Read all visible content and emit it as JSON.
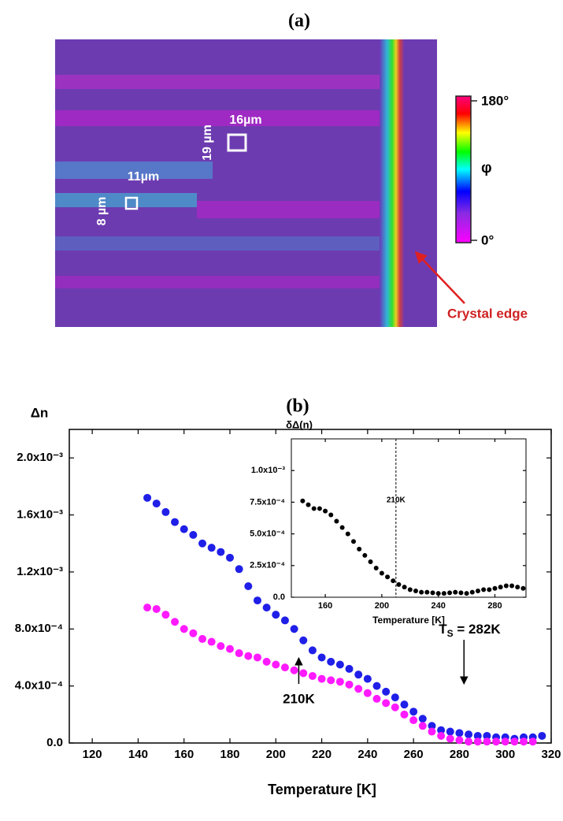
{
  "panel_a": {
    "title": "(a)",
    "labels": [
      "16µm",
      "19 µm",
      "11µm",
      "8 µm"
    ],
    "colorbar": {
      "max_label": "180°",
      "symbol": "φ",
      "min_label": "0°"
    },
    "annotation": "Crystal edge"
  },
  "chart_data": [
    {
      "type": "scatter",
      "title": "(b)",
      "y_label": "Δn",
      "x_label": "Temperature [K]",
      "xlim": [
        110,
        320
      ],
      "xticks": [
        120,
        140,
        160,
        180,
        200,
        220,
        240,
        260,
        280,
        300,
        320
      ],
      "ylim": [
        0,
        0.0022
      ],
      "yticks": [
        {
          "value": 0,
          "label": "0.0"
        },
        {
          "value": 0.0004,
          "label": "4.0x10⁻⁴"
        },
        {
          "value": 0.0008,
          "label": "8.0x10⁻⁴"
        },
        {
          "value": 0.0012,
          "label": "1.2x10⁻³"
        },
        {
          "value": 0.0016,
          "label": "1.6x10⁻³"
        },
        {
          "value": 0.002,
          "label": "2.0x10⁻³"
        }
      ],
      "series": [
        {
          "color": "#1f1fe8",
          "x": [
            144,
            148,
            152,
            156,
            160,
            164,
            168,
            172,
            176,
            180,
            184,
            188,
            192,
            196,
            200,
            204,
            208,
            212,
            216,
            220,
            224,
            228,
            232,
            236,
            240,
            244,
            248,
            252,
            256,
            260,
            264,
            268,
            272,
            276,
            280,
            284,
            288,
            292,
            296,
            300,
            304,
            308,
            312,
            316
          ],
          "values": [
            0.00172,
            0.00168,
            0.00162,
            0.00155,
            0.0015,
            0.00146,
            0.0014,
            0.00137,
            0.00134,
            0.0013,
            0.00122,
            0.0011,
            0.001,
            0.00095,
            0.0009,
            0.00086,
            0.0008,
            0.00072,
            0.00065,
            0.0006,
            0.00057,
            0.00055,
            0.00052,
            0.00048,
            0.00045,
            0.0004,
            0.00036,
            0.00032,
            0.00027,
            0.00022,
            0.00017,
            0.00012,
            9e-05,
            8e-05,
            7e-05,
            6e-05,
            5e-05,
            5e-05,
            4e-05,
            4e-05,
            3e-05,
            4e-05,
            4e-05,
            5e-05
          ]
        },
        {
          "color": "#ff1aff",
          "x": [
            144,
            148,
            152,
            156,
            160,
            164,
            168,
            172,
            176,
            180,
            184,
            188,
            192,
            196,
            200,
            204,
            208,
            212,
            216,
            220,
            224,
            228,
            232,
            236,
            240,
            244,
            248,
            252,
            256,
            260,
            264,
            268,
            272,
            276,
            280,
            284,
            288,
            292,
            296,
            300,
            304,
            308,
            312
          ],
          "values": [
            0.00095,
            0.00094,
            0.0009,
            0.00085,
            0.0008,
            0.00077,
            0.00073,
            0.00071,
            0.00068,
            0.00066,
            0.00063,
            0.00061,
            0.0006,
            0.00057,
            0.00055,
            0.00053,
            0.00051,
            0.00049,
            0.00047,
            0.00045,
            0.00044,
            0.00043,
            0.00041,
            0.00038,
            0.00035,
            0.00031,
            0.00028,
            0.00025,
            0.0002,
            0.00016,
            0.00012,
            8e-05,
            5e-05,
            3e-05,
            2e-05,
            1e-05,
            1e-05,
            1e-05,
            1e-05,
            1e-05,
            1e-05,
            1e-05,
            1e-05
          ]
        }
      ],
      "annotations": [
        {
          "text": "210K",
          "x": 210
        },
        {
          "text": "T",
          "subscript": "S",
          "suffix": " = 282K",
          "x": 282
        }
      ]
    },
    {
      "type": "scatter",
      "title": "δΔ(n)",
      "x_label": "Temperature [K]",
      "xlim": [
        136,
        302
      ],
      "xticks": [
        160,
        200,
        240,
        280
      ],
      "ylim": [
        0,
        0.00125
      ],
      "yticks": [
        {
          "value": 0,
          "label": "0.0"
        },
        {
          "value": 0.00025,
          "label": "2.5x10⁻⁴"
        },
        {
          "value": 0.0005,
          "label": "5.0x10⁻⁴"
        },
        {
          "value": 0.00075,
          "label": "7.5x10⁻⁴"
        },
        {
          "value": 0.001,
          "label": "1.0x10⁻³"
        }
      ],
      "series": [
        {
          "color": "#000000",
          "x": [
            144,
            148,
            152,
            156,
            160,
            164,
            168,
            172,
            176,
            180,
            184,
            188,
            192,
            196,
            200,
            204,
            208,
            212,
            216,
            220,
            224,
            228,
            232,
            236,
            240,
            244,
            248,
            252,
            256,
            260,
            264,
            268,
            272,
            276,
            280,
            284,
            288,
            292,
            296,
            300
          ],
          "values": [
            0.00076,
            0.00073,
            0.0007,
            0.0007,
            0.00068,
            0.00065,
            0.0006,
            0.00055,
            0.0005,
            0.00044,
            0.00038,
            0.00033,
            0.00028,
            0.00023,
            0.00019,
            0.00016,
            0.00013,
            0.0001,
            8e-05,
            6e-05,
            5e-05,
            4e-05,
            4e-05,
            3.5e-05,
            3e-05,
            3e-05,
            3.5e-05,
            4e-05,
            3.5e-05,
            3e-05,
            4e-05,
            5e-05,
            6e-05,
            6e-05,
            7e-05,
            8e-05,
            9e-05,
            9e-05,
            8e-05,
            7e-05
          ]
        }
      ],
      "vline": {
        "x": 210,
        "label": "210K"
      }
    }
  ]
}
